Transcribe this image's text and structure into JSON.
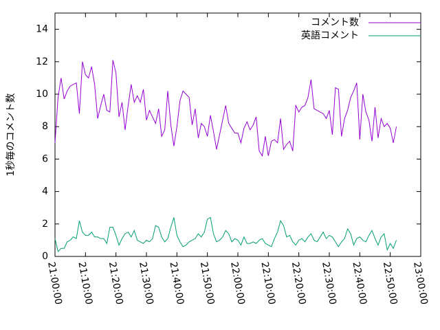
{
  "chart_data": {
    "type": "line",
    "ylabel": "1秒毎のコメント数",
    "x": [
      "21:00:00",
      "21:01:00",
      "21:02:00",
      "21:03:00",
      "21:04:00",
      "21:05:00",
      "21:06:00",
      "21:07:00",
      "21:08:00",
      "21:09:00",
      "21:10:00",
      "21:11:00",
      "21:12:00",
      "21:13:00",
      "21:14:00",
      "21:15:00",
      "21:16:00",
      "21:17:00",
      "21:18:00",
      "21:19:00",
      "21:20:00",
      "21:21:00",
      "21:22:00",
      "21:23:00",
      "21:24:00",
      "21:25:00",
      "21:26:00",
      "21:27:00",
      "21:28:00",
      "21:29:00",
      "21:30:00",
      "21:31:00",
      "21:32:00",
      "21:33:00",
      "21:34:00",
      "21:35:00",
      "21:36:00",
      "21:37:00",
      "21:38:00",
      "21:39:00",
      "21:40:00",
      "21:41:00",
      "21:42:00",
      "21:43:00",
      "21:44:00",
      "21:45:00",
      "21:46:00",
      "21:47:00",
      "21:48:00",
      "21:49:00",
      "21:50:00",
      "21:51:00",
      "21:52:00",
      "21:53:00",
      "21:54:00",
      "21:55:00",
      "21:56:00",
      "21:57:00",
      "21:58:00",
      "21:59:00",
      "22:00:00",
      "22:01:00",
      "22:02:00",
      "22:03:00",
      "22:04:00",
      "22:05:00",
      "22:06:00",
      "22:07:00",
      "22:08:00",
      "22:09:00",
      "22:10:00",
      "22:11:00",
      "22:12:00",
      "22:13:00",
      "22:14:00",
      "22:15:00",
      "22:16:00",
      "22:17:00",
      "22:18:00",
      "22:19:00",
      "22:20:00",
      "22:21:00",
      "22:22:00",
      "22:23:00",
      "22:24:00",
      "22:25:00",
      "22:26:00",
      "22:27:00",
      "22:28:00",
      "22:29:00",
      "22:30:00",
      "22:31:00",
      "22:32:00",
      "22:33:00",
      "22:34:00",
      "22:35:00",
      "22:36:00",
      "22:37:00",
      "22:38:00",
      "22:39:00",
      "22:40:00",
      "22:41:00",
      "22:42:00",
      "22:43:00",
      "22:44:00",
      "22:45:00",
      "22:46:00",
      "22:47:00",
      "22:48:00",
      "22:49:00",
      "22:50:00",
      "22:51:00",
      "22:52:00"
    ],
    "series": [
      {
        "name": "コメント数",
        "color": "#9400d3",
        "values": [
          7.0,
          9.8,
          11.0,
          9.7,
          10.2,
          10.5,
          10.6,
          10.7,
          8.8,
          12.0,
          11.2,
          11.0,
          11.7,
          10.6,
          8.5,
          9.3,
          10.0,
          9.0,
          8.9,
          12.1,
          11.3,
          8.6,
          9.5,
          7.8,
          9.3,
          10.6,
          9.5,
          9.9,
          9.5,
          10.3,
          8.4,
          9.0,
          8.6,
          8.2,
          9.1,
          7.4,
          7.8,
          10.2,
          8.1,
          6.8,
          8.0,
          9.6,
          10.2,
          10.0,
          9.8,
          8.1,
          9.1,
          7.3,
          8.2,
          8.0,
          7.4,
          8.7,
          7.7,
          6.6,
          7.5,
          8.4,
          9.3,
          8.2,
          7.9,
          7.6,
          7.6,
          7.0,
          7.9,
          8.3,
          7.8,
          8.1,
          8.6,
          6.5,
          6.2,
          7.4,
          6.2,
          7.1,
          7.2,
          7.0,
          8.5,
          6.6,
          6.9,
          7.1,
          6.5,
          9.3,
          8.9,
          9.2,
          9.3,
          9.8,
          10.9,
          9.1,
          9.0,
          8.9,
          8.8,
          8.5,
          9.0,
          7.5,
          10.4,
          10.3,
          7.4,
          8.5,
          9.0,
          9.8,
          10.2,
          10.7,
          7.2,
          10.0,
          8.9,
          8.4,
          7.1,
          9.2,
          7.3,
          8.5,
          8.0,
          8.2,
          7.9,
          7.0,
          8.0
        ]
      },
      {
        "name": "英語コメント",
        "color": "#009e73",
        "values": [
          1.1,
          0.3,
          0.5,
          0.5,
          0.9,
          1.0,
          1.2,
          1.1,
          2.2,
          1.5,
          1.3,
          1.3,
          1.5,
          1.2,
          1.2,
          1.1,
          1.1,
          0.8,
          1.8,
          1.8,
          1.3,
          0.7,
          1.1,
          1.4,
          1.5,
          1.2,
          1.6,
          1.0,
          0.9,
          0.8,
          1.0,
          0.9,
          1.1,
          1.9,
          1.8,
          1.2,
          0.9,
          1.1,
          1.8,
          2.4,
          1.3,
          0.9,
          0.6,
          0.7,
          0.9,
          1.0,
          1.1,
          1.4,
          1.2,
          1.5,
          2.3,
          2.4,
          1.4,
          0.9,
          1.0,
          1.2,
          1.6,
          1.4,
          0.9,
          1.1,
          1.0,
          0.7,
          1.2,
          0.8,
          0.8,
          0.9,
          0.8,
          1.0,
          1.1,
          0.8,
          0.7,
          0.6,
          1.1,
          1.5,
          2.2,
          1.9,
          1.2,
          1.3,
          0.9,
          0.7,
          1.0,
          1.1,
          0.9,
          1.2,
          1.4,
          1.0,
          0.9,
          1.2,
          1.5,
          1.1,
          1.3,
          1.2,
          0.9,
          0.6,
          0.9,
          1.1,
          1.7,
          1.4,
          0.7,
          1.1,
          1.2,
          1.0,
          0.9,
          1.3,
          1.6,
          1.1,
          0.7,
          1.2,
          1.4,
          0.4,
          0.8,
          0.5,
          1.0
        ]
      }
    ],
    "xlim": [
      "21:00:00",
      "23:00:00"
    ],
    "xticks": [
      "21:00:00",
      "21:10:00",
      "21:20:00",
      "21:30:00",
      "21:40:00",
      "21:50:00",
      "22:00:00",
      "22:10:00",
      "22:20:00",
      "22:30:00",
      "22:40:00",
      "22:50:00",
      "23:00:00"
    ],
    "ylim": [
      0,
      15
    ],
    "yticks": [
      0,
      2,
      4,
      6,
      8,
      10,
      12,
      14
    ],
    "legend": "top-right"
  }
}
